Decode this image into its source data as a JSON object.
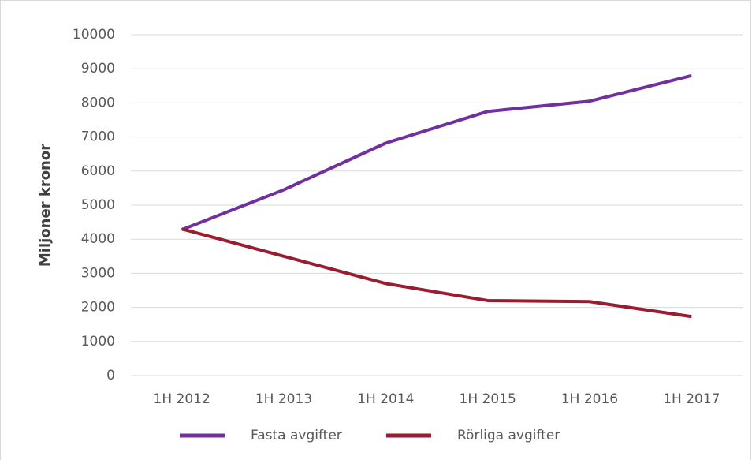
{
  "chart_data": {
    "type": "line",
    "y_label": "Miljoner kronor",
    "categories": [
      "1H 2012",
      "1H 2013",
      "1H 2014",
      "1H 2015",
      "1H 2016",
      "1H 2017"
    ],
    "series": [
      {
        "name": "Fasta avgifter",
        "color": "#7030a0",
        "values": [
          4280,
          5450,
          6820,
          7750,
          8050,
          8800
        ]
      },
      {
        "name": "Rörliga avgifter",
        "color": "#9b1b30",
        "values": [
          4300,
          3500,
          2700,
          2200,
          2170,
          1730
        ]
      }
    ],
    "ylim": [
      0,
      10000
    ],
    "yticks": [
      0,
      1000,
      2000,
      3000,
      4000,
      5000,
      6000,
      7000,
      8000,
      9000,
      10000
    ],
    "grid": true,
    "legend": "bottom"
  }
}
